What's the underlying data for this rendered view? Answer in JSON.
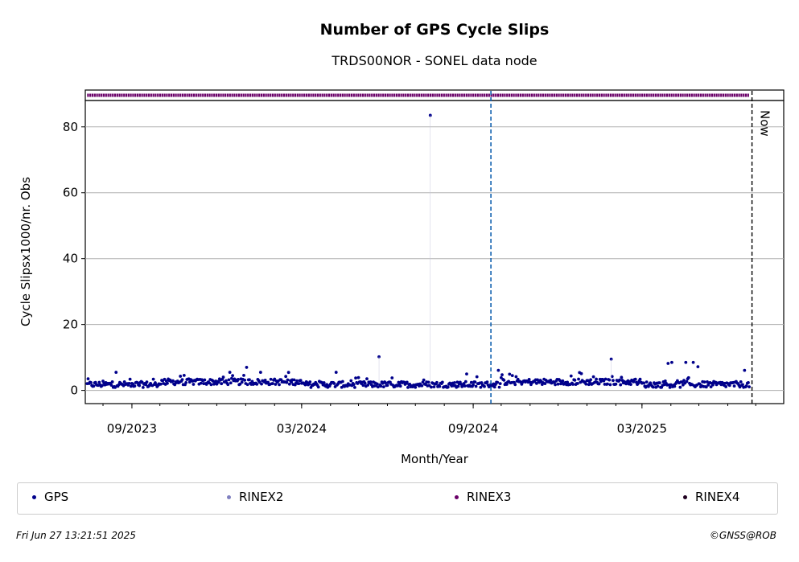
{
  "chart_data": {
    "type": "scatter",
    "title": "Number of GPS Cycle Slips",
    "subtitle": "TRDS00NOR - SONEL data node",
    "xlabel": "Month/Year",
    "ylabel": "Cycle Slipsx1000/nr. Obs",
    "ylim": [
      -4,
      88
    ],
    "yticks": [
      0,
      20,
      40,
      60,
      80
    ],
    "xlim": [
      "2023-07-13",
      "2025-07-31"
    ],
    "xticks": [
      {
        "date": "2023-09-01",
        "label": "09/2023"
      },
      {
        "date": "2024-03-01",
        "label": "03/2024"
      },
      {
        "date": "2024-09-01",
        "label": "09/2024"
      },
      {
        "date": "2025-03-01",
        "label": "03/2025"
      }
    ],
    "grid": "y",
    "now_label": "Now",
    "now_date": "2025-06-27",
    "marker_line_date": "2024-09-20",
    "data_start": "2023-07-15",
    "data_end": "2025-06-24",
    "spikes": [
      {
        "date": "2024-07-17",
        "value": 83.5
      },
      {
        "date": "2024-05-23",
        "value": 10.2
      },
      {
        "date": "2025-01-27",
        "value": 9.5
      },
      {
        "date": "2025-04-02",
        "value": 8.5
      },
      {
        "date": "2025-03-29",
        "value": 8.2
      },
      {
        "date": "2025-04-17",
        "value": 8.5
      },
      {
        "date": "2025-04-25",
        "value": 8.5
      },
      {
        "date": "2025-04-30",
        "value": 7.2
      },
      {
        "date": "2024-01-02",
        "value": 7.0
      },
      {
        "date": "2025-06-19",
        "value": 6.1
      },
      {
        "date": "2024-09-28",
        "value": 6.1
      },
      {
        "date": "2023-08-15",
        "value": 5.5
      },
      {
        "date": "2023-12-15",
        "value": 5.5
      },
      {
        "date": "2024-01-17",
        "value": 5.5
      },
      {
        "date": "2024-04-07",
        "value": 5.5
      },
      {
        "date": "2024-08-25",
        "value": 5.0
      },
      {
        "date": "2024-12-26",
        "value": 5.1
      }
    ],
    "series": [
      {
        "name": "GPS",
        "color": "#00008b"
      },
      {
        "name": "RINEX2",
        "color": "#8080c0"
      },
      {
        "name": "RINEX3",
        "color": "#6a0068"
      },
      {
        "name": "RINEX4",
        "color": "#200020"
      }
    ]
  },
  "footer": {
    "timestamp": "Fri Jun 27 13:21:51 2025",
    "copyright": "©GNSS@ROB"
  }
}
